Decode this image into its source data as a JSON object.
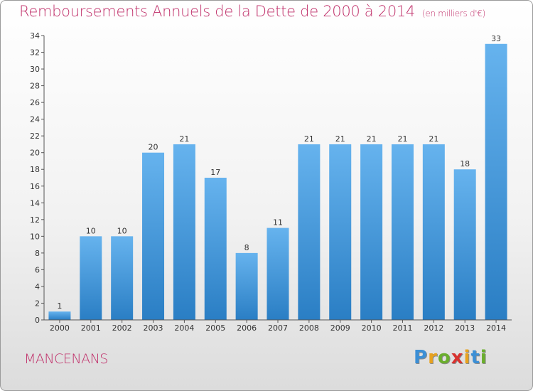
{
  "chart_data": {
    "type": "bar",
    "title": "Remboursements Annuels de la Dette de 2000 à 2014",
    "unit": "(en milliers d'€)",
    "categories": [
      "2000",
      "2001",
      "2002",
      "2003",
      "2004",
      "2005",
      "2006",
      "2007",
      "2008",
      "2009",
      "2010",
      "2011",
      "2012",
      "2013",
      "2014"
    ],
    "values": [
      1,
      10,
      10,
      20,
      21,
      17,
      8,
      11,
      21,
      21,
      21,
      21,
      21,
      18,
      33
    ],
    "ylim": [
      0,
      34
    ],
    "yticks": [
      0,
      2,
      4,
      6,
      8,
      10,
      12,
      14,
      16,
      18,
      20,
      22,
      24,
      26,
      28,
      30,
      32,
      34
    ],
    "grid": false,
    "colors": {
      "bar_light": "#66b3ee",
      "bar_dark": "#2a7ec4",
      "title": "#c0306a"
    }
  },
  "commune": "MANCENANS",
  "logo": {
    "text": "Proxiti",
    "letter_colors": [
      "#3b8fd6",
      "#e8a21e",
      "#6aae2c",
      "#d8322f",
      "#e8a21e",
      "#3b8fd6",
      "#6aae2c"
    ]
  }
}
